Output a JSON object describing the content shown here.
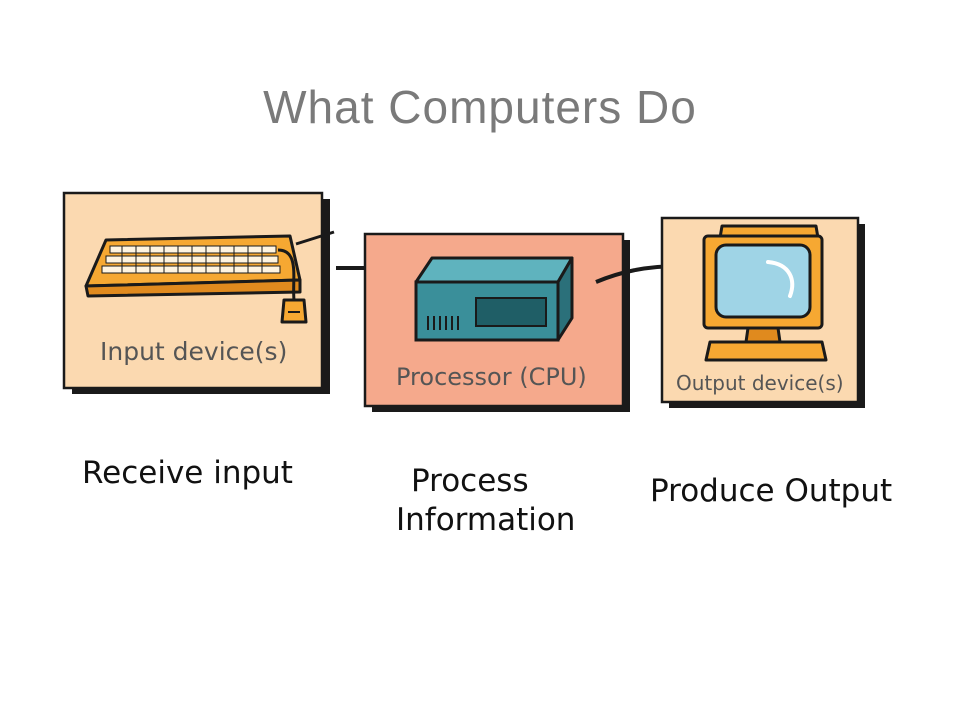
{
  "slide": {
    "title": "What Computers Do"
  },
  "diagram": {
    "boxes": [
      {
        "id": "input",
        "label": "Input device(s)",
        "fill": "#fbd9b0"
      },
      {
        "id": "processor",
        "label": "Processor (CPU)",
        "fill": "#f5a98c"
      },
      {
        "id": "output",
        "label": "Output device(s)",
        "fill": "#fbd9b0"
      }
    ]
  },
  "captions": {
    "input": "Receive input",
    "process_line1": "Process",
    "process_line2": "Information",
    "output": "Produce Output"
  },
  "colors": {
    "title": "#7a7a7a",
    "outline": "#1a1a1a",
    "keyboard": "#f6a832",
    "computer_case": "#3a8f9a",
    "monitor": "#f6a832",
    "screen": "#9fd4e6"
  }
}
